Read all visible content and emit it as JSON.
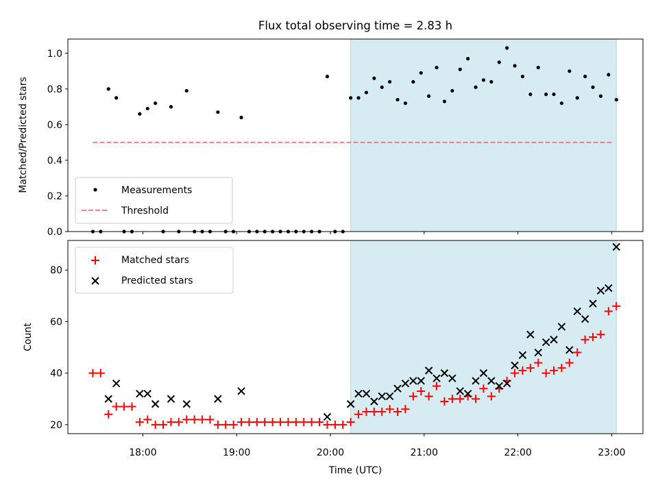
{
  "chart_data": [
    {
      "type": "scatter",
      "title": "Flux total observing time = 2.83 h",
      "ylabel": "Matched/Predicted stars",
      "xlim": [
        "17:12",
        "23:20"
      ],
      "ylim": [
        0,
        1.08
      ],
      "yticks": [
        "0.0",
        "0.2",
        "0.4",
        "0.6",
        "0.8",
        "1.0"
      ],
      "shaded_interval": [
        "20:13",
        "23:03"
      ],
      "shade_color": "#add8e6",
      "legend_position": "lower-left",
      "series": [
        {
          "name": "Measurements",
          "marker": "dot",
          "color": "#000000",
          "x": [
            "17:28",
            "17:33",
            "17:38",
            "17:43",
            "17:48",
            "17:53",
            "17:58",
            "18:03",
            "18:08",
            "18:13",
            "18:18",
            "18:23",
            "18:28",
            "18:33",
            "18:38",
            "18:43",
            "18:48",
            "18:53",
            "18:58",
            "19:03",
            "19:08",
            "19:13",
            "19:18",
            "19:23",
            "19:28",
            "19:33",
            "19:38",
            "19:43",
            "19:48",
            "19:53",
            "19:58",
            "20:03",
            "20:08",
            "20:13",
            "20:18",
            "20:23",
            "20:28",
            "20:33",
            "20:38",
            "20:43",
            "20:48",
            "20:53",
            "20:58",
            "21:03",
            "21:08",
            "21:13",
            "21:18",
            "21:23",
            "21:28",
            "21:33",
            "21:38",
            "21:43",
            "21:48",
            "21:53",
            "21:58",
            "22:03",
            "22:08",
            "22:13",
            "22:18",
            "22:23",
            "22:28",
            "22:33",
            "22:38",
            "22:43",
            "22:48",
            "22:53",
            "22:58",
            "23:03"
          ],
          "y": [
            0,
            0,
            0.8,
            0.75,
            0,
            0,
            0.66,
            0.69,
            0.72,
            0,
            0.7,
            0,
            0.79,
            0,
            0,
            0,
            0.67,
            0,
            0,
            0.64,
            0,
            0,
            0,
            0,
            0,
            0,
            0,
            0,
            0,
            0,
            0.87,
            0,
            0,
            0.75,
            0.75,
            0.78,
            0.86,
            0.81,
            0.84,
            0.74,
            0.72,
            0.84,
            0.89,
            0.76,
            0.92,
            0.73,
            0.79,
            0.91,
            0.97,
            0.81,
            0.85,
            0.84,
            0.95,
            1.03,
            0.93,
            0.87,
            0.77,
            0.92,
            0.77,
            0.77,
            0.72,
            0.9,
            0.75,
            0.87,
            0.81,
            0.76,
            0.88,
            0.74
          ]
        },
        {
          "name": "Threshold",
          "marker": "dashed-line",
          "color": "#f08080",
          "x": [
            "17:28",
            "23:00"
          ],
          "y": [
            0.5,
            0.5
          ]
        }
      ]
    },
    {
      "type": "scatter",
      "xlabel": "Time (UTC)",
      "ylabel": "Count",
      "xlim": [
        "17:12",
        "23:20"
      ],
      "ylim": [
        16.5,
        91.5
      ],
      "xticks": [
        "18:00",
        "19:00",
        "20:00",
        "21:00",
        "22:00",
        "23:00"
      ],
      "yticks": [
        "20",
        "40",
        "60",
        "80"
      ],
      "shaded_interval": [
        "20:13",
        "23:03"
      ],
      "shade_color": "#add8e6",
      "legend_position": "upper-left",
      "series": [
        {
          "name": "Matched stars",
          "marker": "plus",
          "color": "#ff0000",
          "x": [
            "17:28",
            "17:33",
            "17:38",
            "17:43",
            "17:48",
            "17:53",
            "17:58",
            "18:03",
            "18:08",
            "18:13",
            "18:18",
            "18:23",
            "18:28",
            "18:33",
            "18:38",
            "18:43",
            "18:48",
            "18:53",
            "18:58",
            "19:03",
            "19:08",
            "19:13",
            "19:18",
            "19:23",
            "19:28",
            "19:33",
            "19:38",
            "19:43",
            "19:48",
            "19:53",
            "19:58",
            "20:03",
            "20:08",
            "20:13",
            "20:18",
            "20:23",
            "20:28",
            "20:33",
            "20:38",
            "20:43",
            "20:48",
            "20:53",
            "20:58",
            "21:03",
            "21:08",
            "21:13",
            "21:18",
            "21:23",
            "21:28",
            "21:33",
            "21:38",
            "21:43",
            "21:48",
            "21:53",
            "21:58",
            "22:03",
            "22:08",
            "22:13",
            "22:18",
            "22:23",
            "22:28",
            "22:33",
            "22:38",
            "22:43",
            "22:48",
            "22:53",
            "22:58",
            "23:03"
          ],
          "y": [
            40,
            40,
            24,
            27,
            27,
            27,
            21,
            22,
            20,
            20,
            21,
            21,
            22,
            22,
            22,
            22,
            20,
            20,
            20,
            21,
            21,
            21,
            21,
            21,
            21,
            21,
            21,
            21,
            21,
            21,
            20,
            20,
            20,
            21,
            24,
            25,
            25,
            25,
            26,
            25,
            26,
            31,
            33,
            31,
            35,
            29,
            30,
            30,
            31,
            30,
            34,
            31,
            34,
            37,
            40,
            41,
            42,
            44,
            40,
            41,
            42,
            44,
            48,
            53,
            54,
            55,
            64,
            66
          ]
        },
        {
          "name": "Predicted stars",
          "marker": "x",
          "color": "#000000",
          "x": [
            "17:38",
            "17:43",
            "17:58",
            "18:03",
            "18:08",
            "18:18",
            "18:28",
            "18:48",
            "19:03",
            "19:58",
            "20:13",
            "20:18",
            "20:23",
            "20:28",
            "20:33",
            "20:38",
            "20:43",
            "20:48",
            "20:53",
            "20:58",
            "21:03",
            "21:08",
            "21:13",
            "21:18",
            "21:23",
            "21:28",
            "21:33",
            "21:38",
            "21:43",
            "21:48",
            "21:53",
            "21:58",
            "22:03",
            "22:08",
            "22:13",
            "22:18",
            "22:23",
            "22:28",
            "22:33",
            "22:38",
            "22:43",
            "22:48",
            "22:53",
            "22:58",
            "23:03"
          ],
          "y": [
            30,
            36,
            32,
            32,
            28,
            30,
            28,
            30,
            33,
            23,
            28,
            32,
            32,
            29,
            31,
            31,
            34,
            36,
            37,
            37,
            41,
            38,
            40,
            38,
            33,
            32,
            37,
            40,
            37,
            35,
            36,
            43,
            47,
            55,
            48,
            52,
            53,
            58,
            49,
            64,
            61,
            67,
            72,
            73,
            89
          ]
        }
      ]
    }
  ]
}
